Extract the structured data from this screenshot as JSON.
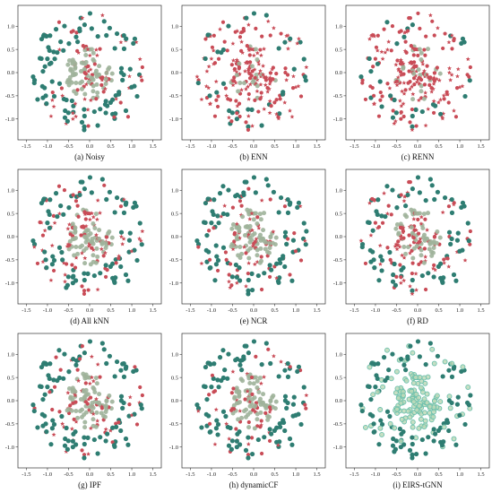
{
  "colors": {
    "teal": "#2e7d72",
    "sage": "#9fb39a",
    "red": "#c94c57",
    "mint_edge": "#6cc0ad",
    "mint_fill": "#bcd9b8"
  },
  "axes": {
    "xlim": [
      -1.7,
      1.7
    ],
    "ylim": [
      -1.45,
      1.45
    ],
    "xticks": [
      "-1.5",
      "-1.0",
      "-0.5",
      "0.0",
      "0.5",
      "1.0",
      "1.5"
    ],
    "xtick_values": [
      -1.5,
      -1.0,
      -0.5,
      0.0,
      0.5,
      1.0,
      1.5
    ],
    "yticks": [
      "1.0",
      "0.5",
      "0.0",
      "-0.5",
      "-1.0"
    ],
    "ytick_values": [
      1.0,
      0.5,
      0.0,
      -0.5,
      -1.0
    ]
  },
  "chart_data": [
    {
      "type": "scatter",
      "caption": "(a) Noisy",
      "noise_ratio": 0.3,
      "outer_points": 130,
      "inner_points": 110
    },
    {
      "type": "scatter",
      "caption": "(b) ENN",
      "noise_ratio": 0.75,
      "outer_points": 130,
      "inner_points": 110
    },
    {
      "type": "scatter",
      "caption": "(c) RENN",
      "noise_ratio": 0.78,
      "outer_points": 130,
      "inner_points": 110
    },
    {
      "type": "scatter",
      "caption": "(d) All kNN",
      "noise_ratio": 0.4,
      "outer_points": 130,
      "inner_points": 110
    },
    {
      "type": "scatter",
      "caption": "(e) NCR",
      "noise_ratio": 0.35,
      "outer_points": 130,
      "inner_points": 110
    },
    {
      "type": "scatter",
      "caption": "(f) RD",
      "noise_ratio": 0.5,
      "outer_points": 130,
      "inner_points": 110
    },
    {
      "type": "scatter",
      "caption": "(g) IPF",
      "noise_ratio": 0.3,
      "outer_points": 130,
      "inner_points": 110
    },
    {
      "type": "scatter",
      "caption": "(h) dynamicCF",
      "noise_ratio": 0.28,
      "outer_points": 130,
      "inner_points": 110
    },
    {
      "type": "scatter",
      "caption": "(i) EIRS-tGNN",
      "noise_ratio": 0.0,
      "outer_points": 130,
      "inner_points": 110
    }
  ]
}
